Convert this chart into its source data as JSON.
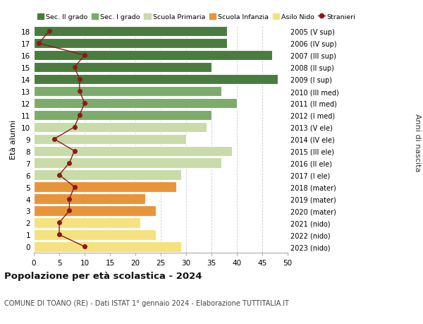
{
  "ages": [
    0,
    1,
    2,
    3,
    4,
    5,
    6,
    7,
    8,
    9,
    10,
    11,
    12,
    13,
    14,
    15,
    16,
    17,
    18
  ],
  "bar_values": [
    29,
    24,
    21,
    24,
    22,
    28,
    29,
    37,
    39,
    30,
    34,
    35,
    40,
    37,
    48,
    35,
    47,
    38,
    38
  ],
  "stranieri": [
    10,
    5,
    5,
    7,
    7,
    8,
    5,
    7,
    8,
    4,
    8,
    9,
    10,
    9,
    9,
    8,
    10,
    1,
    3
  ],
  "right_labels": [
    "2023 (nido)",
    "2022 (nido)",
    "2021 (nido)",
    "2020 (mater)",
    "2019 (mater)",
    "2018 (mater)",
    "2017 (I ele)",
    "2016 (II ele)",
    "2015 (III ele)",
    "2014 (IV ele)",
    "2013 (V ele)",
    "2012 (I med)",
    "2011 (II med)",
    "2010 (III med)",
    "2009 (I sup)",
    "2008 (II sup)",
    "2007 (III sup)",
    "2006 (IV sup)",
    "2005 (V sup)"
  ],
  "bar_colors": [
    "#f5e27e",
    "#f5e27e",
    "#f5e27e",
    "#e8943a",
    "#e8943a",
    "#e8943a",
    "#c8dba8",
    "#c8dba8",
    "#c8dba8",
    "#c8dba8",
    "#c8dba8",
    "#7dab6b",
    "#7dab6b",
    "#7dab6b",
    "#4a7c3f",
    "#4a7c3f",
    "#4a7c3f",
    "#4a7c3f",
    "#4a7c3f"
  ],
  "legend_labels": [
    "Sec. II grado",
    "Sec. I grado",
    "Scuola Primaria",
    "Scuola Infanzia",
    "Asilo Nido",
    "Stranieri"
  ],
  "legend_colors": [
    "#4a7c3f",
    "#7dab6b",
    "#c8dba8",
    "#e8943a",
    "#f5e27e",
    "#8b1a1a"
  ],
  "stranieri_color": "#8b1a1a",
  "ylabel_left": "Età alunni",
  "ylabel_right": "Anni di nascita",
  "title": "Popolazione per età scolastica - 2024",
  "subtitle": "COMUNE DI TOANO (RE) - Dati ISTAT 1° gennaio 2024 - Elaborazione TUTTITALIA.IT",
  "xlim": [
    0,
    50
  ],
  "background_color": "#ffffff",
  "grid_color": "#cccccc",
  "xticks": [
    0,
    5,
    10,
    15,
    20,
    25,
    30,
    35,
    40,
    45,
    50
  ]
}
